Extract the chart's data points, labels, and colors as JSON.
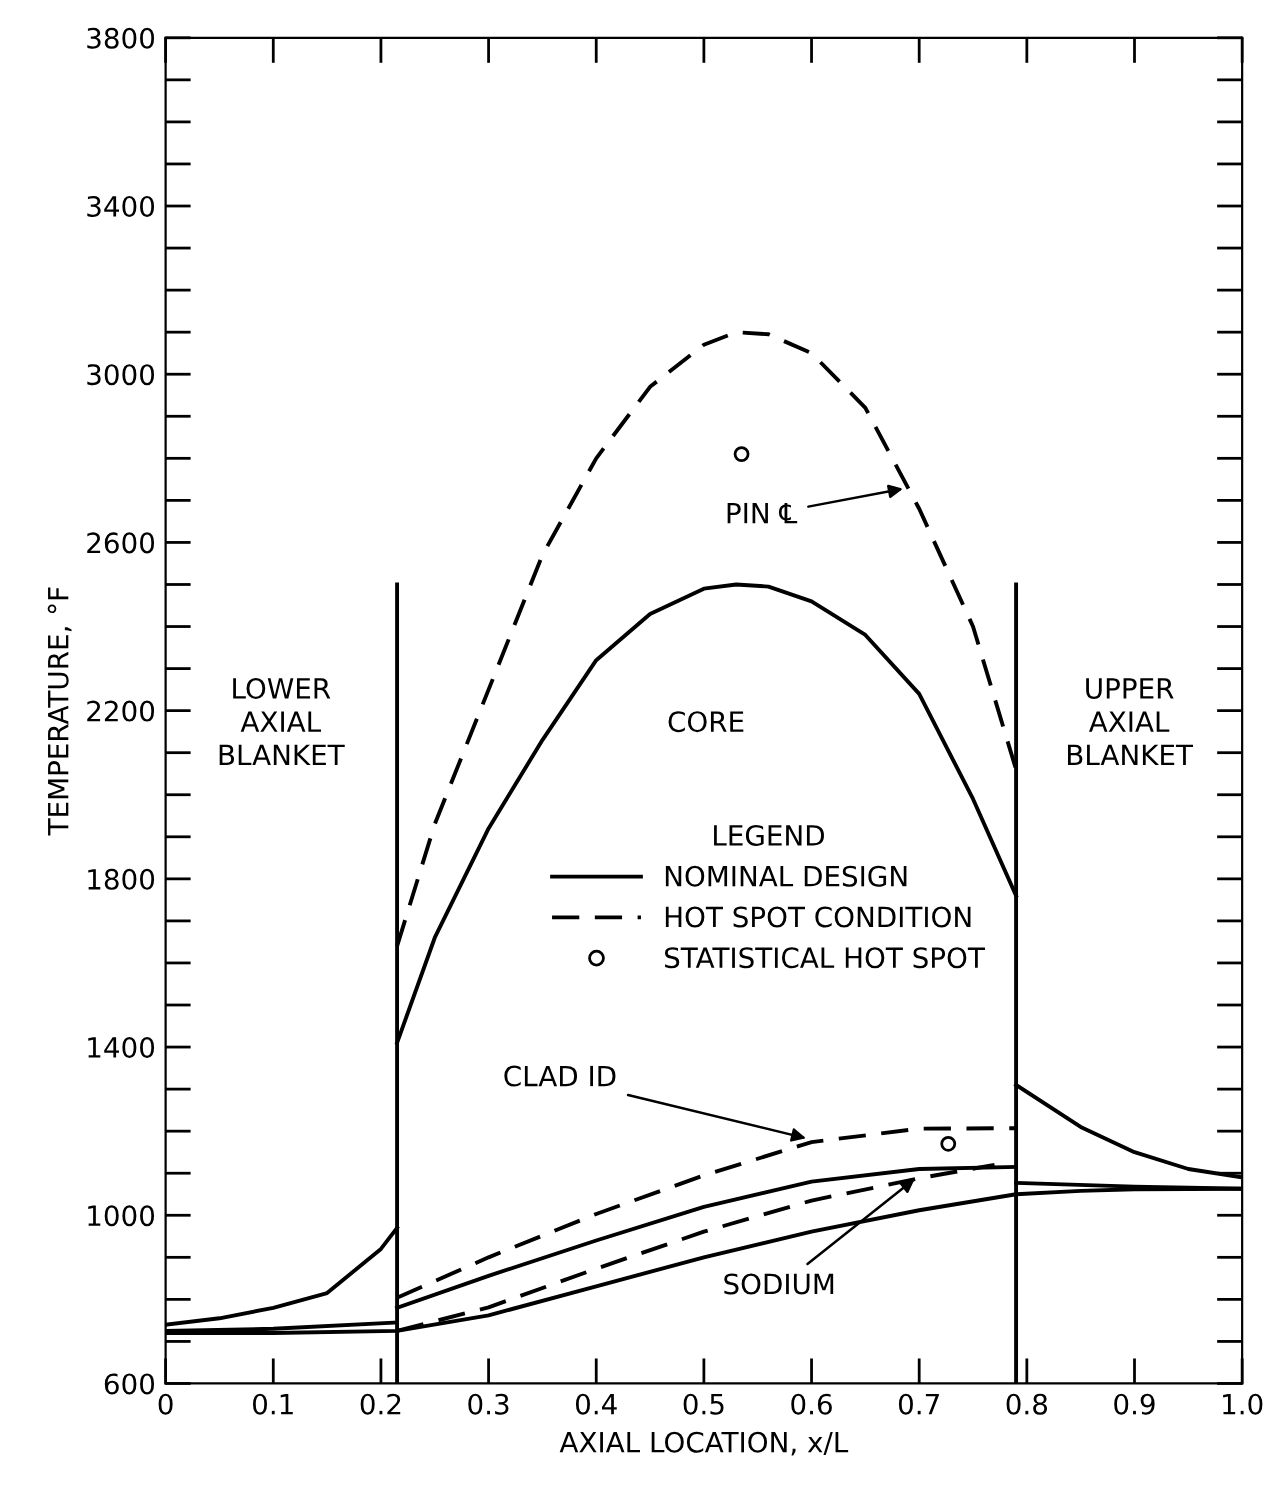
{
  "chart_data": {
    "type": "line",
    "xlabel": "AXIAL LOCATION, x/L",
    "ylabel": "TEMPERATURE, °F",
    "xlim": [
      0,
      1.0
    ],
    "ylim": [
      600,
      3800
    ],
    "xticks": [
      0,
      0.1,
      0.2,
      0.3,
      0.4,
      0.5,
      0.6,
      0.7,
      0.8,
      0.9,
      {
        "value": 1.0,
        "label": "1.0"
      }
    ],
    "yticks": [
      600,
      {
        "value": 700,
        "label": null
      },
      {
        "value": 800,
        "label": null
      },
      {
        "value": 900,
        "label": null
      },
      1000,
      {
        "value": 1100,
        "label": null
      },
      {
        "value": 1200,
        "label": null
      },
      {
        "value": 1300,
        "label": null
      },
      1400,
      {
        "value": 1500,
        "label": null
      },
      {
        "value": 1600,
        "label": null
      },
      {
        "value": 1700,
        "label": null
      },
      1800,
      {
        "value": 1900,
        "label": null
      },
      {
        "value": 2000,
        "label": null
      },
      {
        "value": 2100,
        "label": null
      },
      2200,
      {
        "value": 2300,
        "label": null
      },
      {
        "value": 2400,
        "label": null
      },
      {
        "value": 2500,
        "label": null
      },
      2600,
      {
        "value": 2700,
        "label": null
      },
      {
        "value": 2800,
        "label": null
      },
      {
        "value": 2900,
        "label": null
      },
      3000,
      {
        "value": 3100,
        "label": null
      },
      {
        "value": 3200,
        "label": null
      },
      {
        "value": 3300,
        "label": null
      },
      3400,
      {
        "value": 3500,
        "label": null
      },
      {
        "value": 3600,
        "label": null
      },
      {
        "value": 3700,
        "label": null
      },
      3800
    ],
    "grid": false,
    "legend": "center",
    "legend_title": "LEGEND",
    "series": [
      {
        "name": "NOMINAL DESIGN",
        "color": "#000000",
        "line_style": "solid",
        "x": [
          0.215,
          0.25,
          0.3,
          0.35,
          0.4,
          0.45,
          0.5,
          0.53,
          0.56,
          0.6,
          0.65,
          0.7,
          0.75,
          0.79
        ],
        "values": [
          1410,
          1660,
          1920,
          2130,
          2320,
          2430,
          2490,
          2500,
          2495,
          2460,
          2380,
          2240,
          1990,
          1760
        ]
      },
      {
        "name": "HOT SPOT CONDITION",
        "color": "#000000",
        "line_style": "dashed",
        "x": [
          0.215,
          0.25,
          0.3,
          0.35,
          0.4,
          0.45,
          0.5,
          0.53,
          0.56,
          0.6,
          0.65,
          0.7,
          0.75,
          0.79
        ],
        "values": [
          1640,
          1930,
          2250,
          2570,
          2800,
          2970,
          3070,
          3100,
          3095,
          3050,
          2920,
          2680,
          2400,
          2060
        ]
      },
      {
        "name": "STATISTICAL HOT SPOT",
        "type": "scatter",
        "marker": "circle",
        "color": "#000000",
        "x": [
          0.535,
          0.727
        ],
        "values": [
          2810,
          1170
        ]
      },
      {
        "color": "#000000",
        "line_style": "solid",
        "x": [
          0,
          0.05,
          0.1,
          0.15,
          0.2,
          0.215
        ],
        "values": [
          740,
          755,
          780,
          815,
          920,
          970
        ]
      },
      {
        "color": "#000000",
        "line_style": "solid",
        "x": [
          0.79,
          0.85,
          0.9,
          0.95,
          1.0
        ],
        "values": [
          1310,
          1210,
          1150,
          1110,
          1090
        ]
      },
      {
        "color": "#000000",
        "line_style": "solid",
        "x": [
          0,
          0.1,
          0.215
        ],
        "values": [
          725,
          730,
          745
        ]
      },
      {
        "color": "#000000",
        "line_style": "solid",
        "x": [
          0.215,
          0.3,
          0.4,
          0.5,
          0.6,
          0.7,
          0.79
        ],
        "values": [
          780,
          856,
          940,
          1020,
          1080,
          1110,
          1115
        ]
      },
      {
        "color": "#000000",
        "line_style": "dashed",
        "x": [
          0.215,
          0.3,
          0.4,
          0.5,
          0.6,
          0.7,
          0.79
        ],
        "values": [
          804,
          900,
          1003,
          1095,
          1174,
          1206,
          1207
        ]
      },
      {
        "color": "#000000",
        "line_style": "solid",
        "x": [
          0,
          0.1,
          0.215,
          0.3,
          0.4,
          0.5,
          0.6,
          0.7,
          0.79,
          0.85,
          0.9,
          1.0
        ],
        "values": [
          720,
          720,
          725,
          762,
          831,
          900,
          961,
          1012,
          1050,
          1058,
          1062,
          1063
        ]
      },
      {
        "color": "#000000",
        "line_style": "dashed",
        "x": [
          0.215,
          0.3,
          0.4,
          0.5,
          0.6,
          0.7,
          0.77
        ],
        "values": [
          725,
          781,
          873,
          961,
          1035,
          1088,
          1120
        ]
      },
      {
        "color": "#000000",
        "line_style": "solid",
        "x": [
          0.79,
          0.9,
          1.0
        ],
        "values": [
          1077,
          1068,
          1063
        ]
      },
      {
        "color": "#000000",
        "line_style": "solid",
        "x": [
          0.215,
          0.215
        ],
        "values": [
          600,
          2500
        ]
      },
      {
        "color": "#000000",
        "line_style": "solid",
        "x": [
          0.79,
          0.79
        ],
        "values": [
          600,
          2500
        ]
      }
    ],
    "annotations": [
      "LOWER\nAXIAL\nBLANKET",
      "CORE",
      "UPPER\nAXIAL\nBLANKET",
      {
        "text": "PIN ℄",
        "x": 0.69,
        "y": 2730
      },
      {
        "text": "CLAD ID",
        "x": 0.6,
        "y": 1180
      },
      {
        "text": "SODIUM",
        "x": 0.7,
        "y": 1095
      }
    ]
  }
}
